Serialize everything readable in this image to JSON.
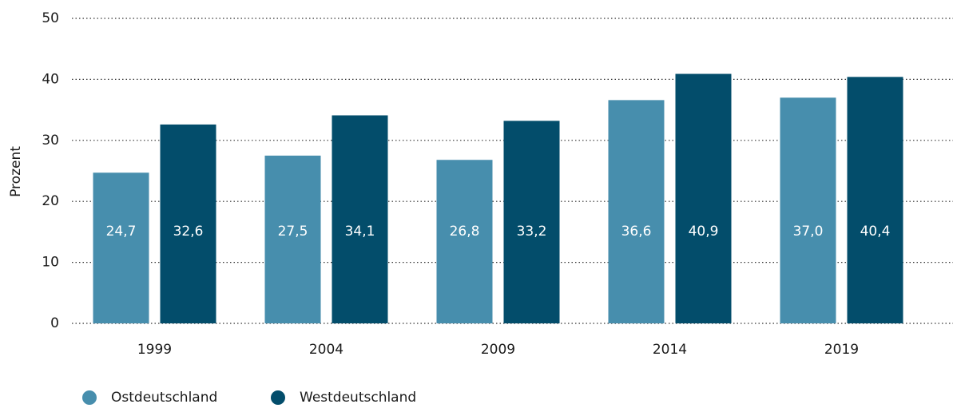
{
  "chart_data": {
    "type": "bar",
    "y_label": "Prozent",
    "categories": [
      "1999",
      "2004",
      "2009",
      "2014",
      "2019"
    ],
    "series": [
      {
        "name": "Ostdeutschland",
        "color": "#478ead",
        "values": [
          24.7,
          27.5,
          26.8,
          36.6,
          37.0
        ],
        "value_labels": [
          "24,7",
          "27,5",
          "26,8",
          "36,6",
          "37,0"
        ]
      },
      {
        "name": "Westdeutschland",
        "color": "#034d6b",
        "values": [
          32.6,
          34.1,
          33.2,
          40.9,
          40.4
        ],
        "value_labels": [
          "32,6",
          "34,1",
          "33,2",
          "40,9",
          "40,4"
        ]
      }
    ],
    "ylim": [
      0,
      50
    ],
    "yticks": [
      0,
      10,
      20,
      30,
      40,
      50
    ],
    "grid": true,
    "legend": "bottom-left"
  }
}
